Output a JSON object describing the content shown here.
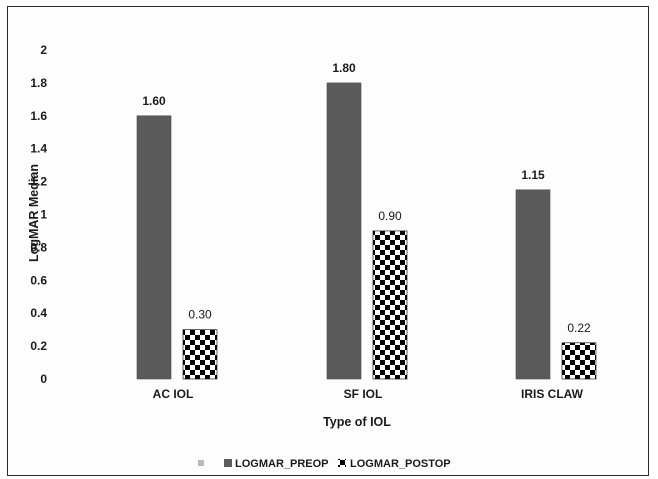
{
  "chart_data": {
    "type": "bar",
    "categories": [
      "AC IOL",
      "SF IOL",
      "IRIS CLAW"
    ],
    "series": [
      {
        "name": "LOGMAR_PREOP",
        "values": [
          1.6,
          1.8,
          1.15
        ],
        "labels": [
          "1.60",
          "1.80",
          "1.15"
        ],
        "color": "#5b5b5b",
        "fill": "solid"
      },
      {
        "name": "LOGMAR_POSTOP",
        "values": [
          0.3,
          0.9,
          0.22
        ],
        "labels": [
          "0.30",
          "0.90",
          "0.22"
        ],
        "color": "#000000",
        "fill": "checkerboard"
      }
    ],
    "xlabel": "Type of IOL",
    "ylabel": "LogMAR Median",
    "ylim": [
      0,
      2
    ],
    "yticks": [
      "0",
      "0.2",
      "0.4",
      "0.6",
      "0.8",
      "1",
      "1.2",
      "1.4",
      "1.6",
      "1.8",
      "2"
    ],
    "grid": false,
    "legend": "bottom"
  }
}
